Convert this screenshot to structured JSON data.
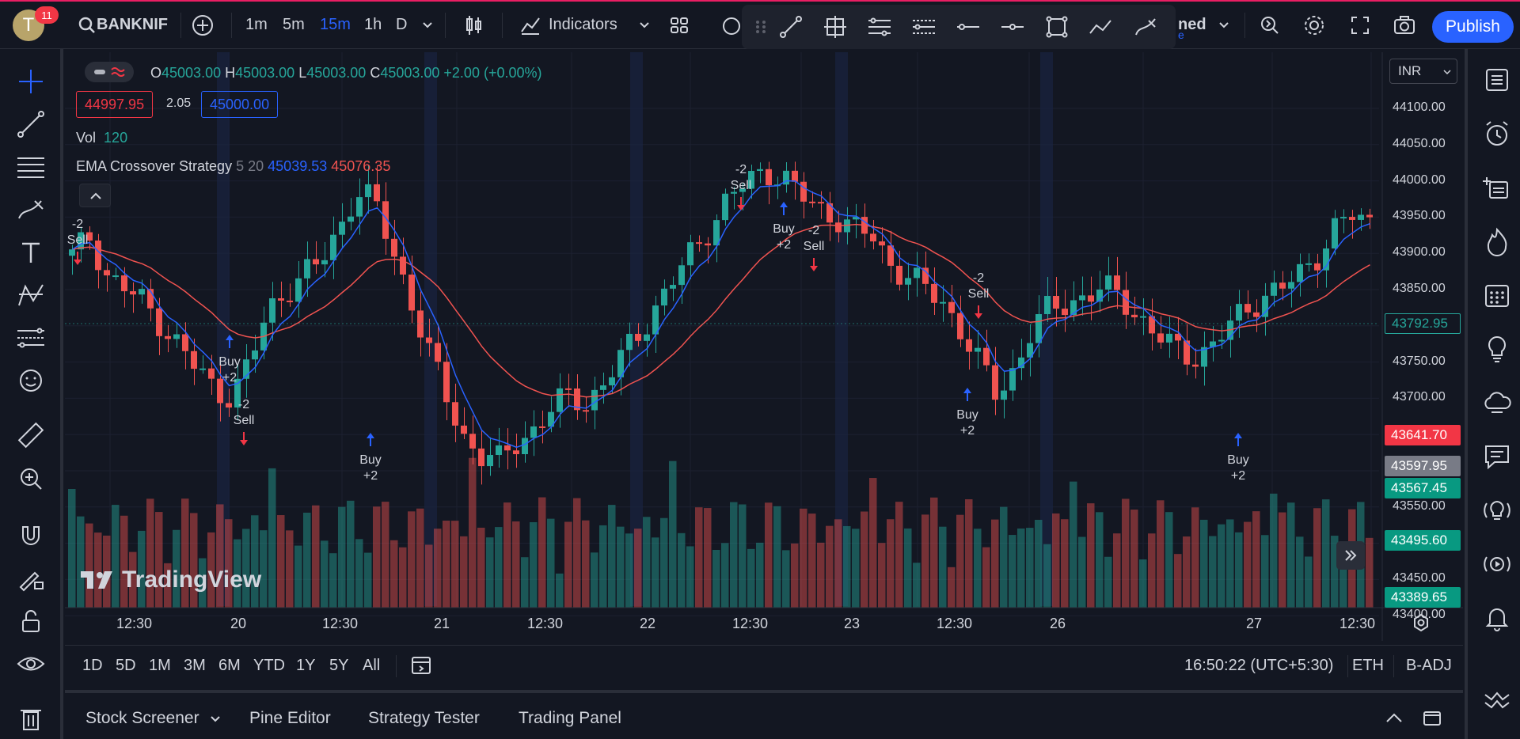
{
  "header": {
    "avatar_letter": "T",
    "notification_count": "11",
    "symbol": "BANKNIF",
    "intervals": [
      "1m",
      "5m",
      "15m",
      "1h",
      "D"
    ],
    "active_interval": "15m",
    "indicators_label": "Indicators",
    "hidden_text_1": "ned",
    "hidden_text_2": "e",
    "publish_label": "Publish"
  },
  "legend": {
    "o_label": "O",
    "o_value": "45003.00",
    "h_label": "H",
    "h_value": "45003.00",
    "l_label": "L",
    "l_value": "45003.00",
    "c_label": "C",
    "c_value": "45003.00",
    "change": "+2.00 (+0.00%)",
    "bid": "44997.95",
    "spread": "2.05",
    "ask": "45000.00",
    "vol_label": "Vol",
    "vol_value": "120",
    "strategy_name": "EMA Crossover Strategy",
    "strategy_params": "5 20",
    "ema_fast": "45039.53",
    "ema_slow": "45076.35"
  },
  "price_scale": {
    "currency": "INR",
    "ticks": [
      "44100.00",
      "44050.00",
      "44000.00",
      "43950.00",
      "43900.00",
      "43850.00",
      "43800.00",
      "43750.00",
      "43700.00",
      "43650.00",
      "43600.00",
      "43550.00",
      "43500.00",
      "43450.00",
      "43400.00"
    ],
    "tags": [
      {
        "value": "43792.95",
        "kind": "outline"
      },
      {
        "value": "43641.70",
        "kind": "red"
      },
      {
        "value": "43597.95",
        "kind": "grey"
      },
      {
        "value": "43567.45",
        "kind": "green"
      },
      {
        "value": "43495.60",
        "kind": "green"
      },
      {
        "value": "43389.65",
        "kind": "green"
      }
    ]
  },
  "time_axis": [
    "12:30",
    "20",
    "12:30",
    "21",
    "12:30",
    "22",
    "12:30",
    "23",
    "12:30",
    "26",
    "27",
    "12:30"
  ],
  "signals": [
    {
      "type": "sell",
      "line1": "-2",
      "line2": "Sell"
    },
    {
      "type": "buy",
      "line1": "Buy",
      "line2": "+2"
    },
    {
      "type": "sell",
      "line1": "-2",
      "line2": "Sell"
    },
    {
      "type": "buy",
      "line1": "Buy",
      "line2": "+2"
    },
    {
      "type": "sell",
      "line1": "-2",
      "line2": "Sell"
    },
    {
      "type": "buy",
      "line1": "Buy",
      "line2": "+2"
    },
    {
      "type": "sell",
      "line1": "-2",
      "line2": "Sell"
    },
    {
      "type": "sell",
      "line1": "-2",
      "line2": "Sell"
    },
    {
      "type": "buy",
      "line1": "Buy",
      "line2": "+2"
    },
    {
      "type": "buy",
      "line1": "Buy",
      "line2": "+2"
    }
  ],
  "range_bar": {
    "ranges": [
      "1D",
      "5D",
      "1M",
      "3M",
      "6M",
      "YTD",
      "1Y",
      "5Y",
      "All"
    ],
    "clock": "16:50:22 (UTC+5:30)",
    "session": "ETH",
    "adjust": "B-ADJ"
  },
  "bottom_panel": {
    "tabs": [
      "Stock Screener",
      "Pine Editor",
      "Strategy Tester",
      "Trading Panel"
    ]
  },
  "logo_text": "TradingView",
  "colors": {
    "up": "#26a69a",
    "down": "#f05350",
    "ema_fast": "#2962ff",
    "ema_slow": "#f05350",
    "accent": "#2962ff"
  }
}
